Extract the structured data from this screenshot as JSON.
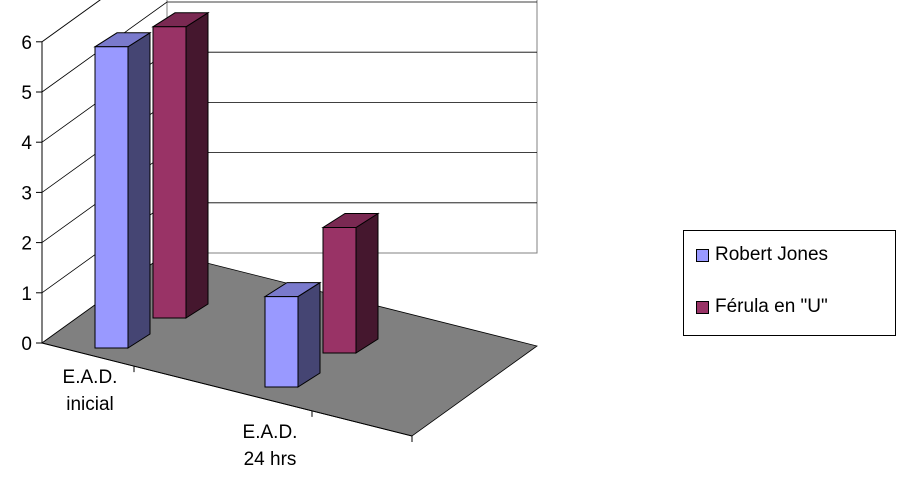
{
  "chart_data": {
    "type": "bar",
    "subtype": "3d-clustered-column",
    "categories": [
      [
        "E.A.D.",
        "inicial"
      ],
      [
        "E.A.D.",
        "24 hrs"
      ]
    ],
    "series": [
      {
        "name": "Robert Jones",
        "values": [
          6.0,
          1.8
        ],
        "color": "#9999ff"
      },
      {
        "name": "Férula en \"U\"",
        "values": [
          5.8,
          2.5
        ],
        "color": "#993366"
      }
    ],
    "ylim": [
      0,
      6
    ],
    "yticks": [
      0,
      1,
      2,
      3,
      4,
      5,
      6
    ],
    "grid": true,
    "floor_color": "#808080",
    "legend_position": "right",
    "title": "",
    "xlabel": "",
    "ylabel": ""
  }
}
